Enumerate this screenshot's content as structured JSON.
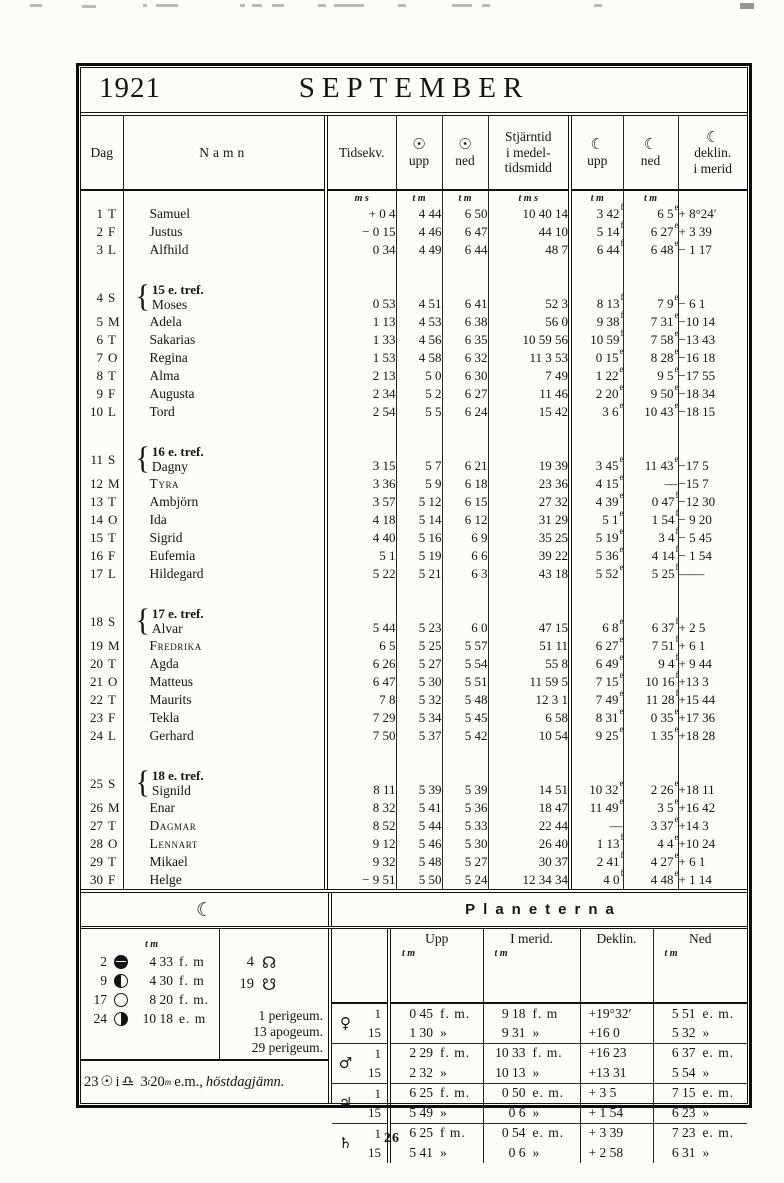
{
  "page": {
    "number": "26"
  },
  "title": {
    "year": "1921",
    "month": "SEPTEMBER"
  },
  "table": {
    "brace": "{",
    "headers": {
      "dag": "Dag",
      "namn": "Namn",
      "tidsekv": "Tidsekv.",
      "sun_symbol": "☉",
      "sun_upp": "upp",
      "sun_ned": "ned",
      "stjarntid": [
        "Stjärntid",
        "i medel-",
        "tidsmidd"
      ],
      "moon_symbol": "☾",
      "moon_upp": "upp",
      "moon_ned": "ned",
      "deklin_l1": "deklin.",
      "deklin_l2": "i merid"
    },
    "units": {
      "tidsekv": "m s",
      "sun_upp": "t m",
      "sun_ned": "t m",
      "stjarntid": "t m s",
      "moon_upp": "t m",
      "moon_ned": "t m"
    },
    "rows": [
      {
        "day": "1",
        "wd": "T",
        "name": "Samuel",
        "values": [
          "+ 0 4",
          "4 44",
          "6 50",
          "10 40 14",
          "3 42f",
          "6 5e",
          "+ 8°24′"
        ]
      },
      {
        "day": "2",
        "wd": "F",
        "name": "Justus",
        "values": [
          "− 0 15",
          "4 46",
          "6 47",
          "44 10",
          "5 14f",
          "6 27e",
          "+ 3 39"
        ]
      },
      {
        "day": "3",
        "wd": "L",
        "name": "Alfhild",
        "values": [
          "0 34",
          "4 49",
          "6 44",
          "48 7",
          "6 44f",
          "6 48e",
          "− 1 17"
        ]
      },
      {
        "day": "4",
        "wd": "S",
        "gap_before": true,
        "sunday": "15 e. tref.",
        "name": "Moses",
        "values": [
          "0 53",
          "4 51",
          "6 41",
          "52 3",
          "8 13f",
          "7 9e",
          "− 6 1"
        ]
      },
      {
        "day": "5",
        "wd": "M",
        "name": "Adela",
        "values": [
          "1 13",
          "4 53",
          "6 38",
          "56 0",
          "9 38f",
          "7 31e",
          "−10 14"
        ]
      },
      {
        "day": "6",
        "wd": "T",
        "name": "Sakarias",
        "values": [
          "1 33",
          "4 56",
          "6 35",
          "10 59 56",
          "10 59f",
          "7 58e",
          "−13 43"
        ]
      },
      {
        "day": "7",
        "wd": "O",
        "name": "Regina",
        "values": [
          "1 53",
          "4 58",
          "6 32",
          "11 3 53",
          "0 15e",
          "8 28e",
          "−16 18"
        ]
      },
      {
        "day": "8",
        "wd": "T",
        "name": "Alma",
        "values": [
          "2 13",
          "5 0",
          "6 30",
          "7 49",
          "1 22e",
          "9 5e",
          "−17 55"
        ]
      },
      {
        "day": "9",
        "wd": "F",
        "name": "Augusta",
        "values": [
          "2 34",
          "5 2",
          "6 27",
          "11 46",
          "2 20e",
          "9 50e",
          "−18 34"
        ]
      },
      {
        "day": "10",
        "wd": "L",
        "name": "Tord",
        "values": [
          "2 54",
          "5 5",
          "6 24",
          "15 42",
          "3 6e",
          "10 43e",
          "−18 15"
        ]
      },
      {
        "day": "11",
        "wd": "S",
        "gap_before": true,
        "sunday": "16 e. tref.",
        "name": "Dagny",
        "values": [
          "3 15",
          "5 7",
          "6 21",
          "19 39",
          "3 45e",
          "11 43e",
          "−17 5"
        ]
      },
      {
        "day": "12",
        "wd": "M",
        "name": "Tyra",
        "smallcaps": true,
        "values": [
          "3 36",
          "5 9",
          "6 18",
          "23 36",
          "4 15e",
          "—",
          "−15 7"
        ]
      },
      {
        "day": "13",
        "wd": "T",
        "name": "Ambjörn",
        "values": [
          "3 57",
          "5 12",
          "6 15",
          "27 32",
          "4 39e",
          "0 47f",
          "−12 30"
        ]
      },
      {
        "day": "14",
        "wd": "O",
        "name": "Ida",
        "values": [
          "4 18",
          "5 14",
          "6 12",
          "31 29",
          "5 1e",
          "1 54f",
          "− 9 20"
        ]
      },
      {
        "day": "15",
        "wd": "T",
        "name": "Sigrid",
        "values": [
          "4 40",
          "5 16",
          "6 9",
          "35 25",
          "5 19e",
          "3 4f",
          "− 5 45"
        ]
      },
      {
        "day": "16",
        "wd": "F",
        "name": "Eufemia",
        "values": [
          "5 1",
          "5 19",
          "6 6",
          "39 22",
          "5 36e",
          "4 14f",
          "− 1 54"
        ]
      },
      {
        "day": "17",
        "wd": "L",
        "name": "Hildegard",
        "values": [
          "5 22",
          "5 21",
          "6 3",
          "43 18",
          "5 52e",
          "5 25f",
          "——"
        ]
      },
      {
        "day": "18",
        "wd": "S",
        "gap_before": true,
        "sunday": "17 e. tref.",
        "name": "Alvar",
        "values": [
          "5 44",
          "5 23",
          "6 0",
          "47 15",
          "6 8e",
          "6 37f",
          "+ 2 5"
        ]
      },
      {
        "day": "19",
        "wd": "M",
        "name": "Fredrika",
        "smallcaps": true,
        "values": [
          "6 5",
          "5 25",
          "5 57",
          "51 11",
          "6 27e",
          "7 51f",
          "+ 6 1"
        ]
      },
      {
        "day": "20",
        "wd": "T",
        "name": "Agda",
        "values": [
          "6 26",
          "5 27",
          "5 54",
          "55 8",
          "6 49e",
          "9 4f",
          "+ 9 44"
        ]
      },
      {
        "day": "21",
        "wd": "O",
        "name": "Matteus",
        "values": [
          "6 47",
          "5 30",
          "5 51",
          "11 59 5",
          "7 15e",
          "10 16f",
          "+13 3"
        ]
      },
      {
        "day": "22",
        "wd": "T",
        "name": "Maurits",
        "values": [
          "7 8",
          "5 32",
          "5 48",
          "12 3 1",
          "7 49e",
          "11 28f",
          "+15 44"
        ]
      },
      {
        "day": "23",
        "wd": "F",
        "name": "Tekla",
        "values": [
          "7 29",
          "5 34",
          "5 45",
          "6 58",
          "8 31e",
          "0 35e",
          "+17 36"
        ]
      },
      {
        "day": "24",
        "wd": "L",
        "name": "Gerhard",
        "values": [
          "7 50",
          "5 37",
          "5 42",
          "10 54",
          "9 25e",
          "1 35e",
          "+18 28"
        ]
      },
      {
        "day": "25",
        "wd": "S",
        "gap_before": true,
        "sunday": "18 e. tref.",
        "name": "Signild",
        "values": [
          "8 11",
          "5 39",
          "5 39",
          "14 51",
          "10 32e",
          "2 26e",
          "+18 11"
        ]
      },
      {
        "day": "26",
        "wd": "M",
        "name": "Enar",
        "values": [
          "8 32",
          "5 41",
          "5 36",
          "18 47",
          "11 49e",
          "3 5e",
          "+16 42"
        ]
      },
      {
        "day": "27",
        "wd": "T",
        "name": "Dagmar",
        "smallcaps": true,
        "values": [
          "8 52",
          "5 44",
          "5 33",
          "22 44",
          "—",
          "3 37e",
          "+14 3"
        ]
      },
      {
        "day": "28",
        "wd": "O",
        "name": "Lennart",
        "smallcaps": true,
        "values": [
          "9 12",
          "5 46",
          "5 30",
          "26 40",
          "1 13f",
          "4 4e",
          "+10 24"
        ]
      },
      {
        "day": "29",
        "wd": "T",
        "name": "Mikael",
        "values": [
          "9 32",
          "5 48",
          "5 27",
          "30 37",
          "2 41f",
          "4 27e",
          "+ 6 1"
        ]
      },
      {
        "day": "30",
        "wd": "F",
        "name": "Helge",
        "values": [
          "− 9 51",
          "5 50",
          "5 24",
          "12 34 34",
          "4 0f",
          "4 48e",
          "+ 1 14"
        ]
      }
    ]
  },
  "moon_panel": {
    "symbol": "☾",
    "units": "t m",
    "phases": [
      {
        "day": "2",
        "phase": "new-moon",
        "time": "4 33",
        "ampm": "f. m"
      },
      {
        "day": "9",
        "phase": "first-quarter",
        "time": "4 30",
        "ampm": "f. m"
      },
      {
        "day": "17",
        "phase": "full-moon",
        "time": "8 20",
        "ampm": "f. m."
      },
      {
        "day": "24",
        "phase": "last-quarter",
        "time": "10 18",
        "ampm": "e. m"
      }
    ],
    "nodes": [
      {
        "day": "4",
        "symbol": "☊"
      },
      {
        "day": "19",
        "symbol": "☋"
      }
    ],
    "apsides": [
      "1 perigeum.",
      "13 apogeum.",
      "29 perigeum."
    ],
    "equinox": {
      "day": "23",
      "sun": "☉",
      "mid": "i",
      "libra": "♎",
      "hour": "3",
      "hour_unit": "t",
      "minute": "20",
      "minute_unit": "m",
      "suffix": "e.m.,",
      "note": "höstdagjämn."
    }
  },
  "planets_panel": {
    "title": "Planeterna",
    "col_headers": [
      "Upp",
      "I merid.",
      "Deklin.",
      "Ned"
    ],
    "time_unit": "t m",
    "planets": [
      {
        "symbol": "♀",
        "name": "venus",
        "rows": [
          {
            "date": "1",
            "upp": "0 45",
            "upp_s": "f. m.",
            "merid": "9 18",
            "merid_s": "f. m",
            "deklin": "+19°32′",
            "ned": "5 51",
            "ned_s": "e. m."
          },
          {
            "date": "15",
            "upp": "1 30",
            "upp_s": "»",
            "merid": "9 31",
            "merid_s": "»",
            "deklin": "+16 0",
            "ned": "5 32",
            "ned_s": "»"
          }
        ]
      },
      {
        "symbol": "♂",
        "name": "mars",
        "rows": [
          {
            "date": "1",
            "upp": "2 29",
            "upp_s": "f. m.",
            "merid": "10 33",
            "merid_s": "f. m.",
            "deklin": "+16 23",
            "ned": "6 37",
            "ned_s": "e. m."
          },
          {
            "date": "15",
            "upp": "2 32",
            "upp_s": "»",
            "merid": "10 13",
            "merid_s": "»",
            "deklin": "+13 31",
            "ned": "5 54",
            "ned_s": "»"
          }
        ]
      },
      {
        "symbol": "♃",
        "name": "jupiter",
        "rows": [
          {
            "date": "1",
            "upp": "6 25",
            "upp_s": "f. m.",
            "merid": "0 50",
            "merid_s": "e. m.",
            "deklin": "+ 3 5",
            "ned": "7 15",
            "ned_s": "e. m."
          },
          {
            "date": "15",
            "upp": "5 49",
            "upp_s": "»",
            "merid": "0 6",
            "merid_s": "»",
            "deklin": "+ 1 54",
            "ned": "6 23",
            "ned_s": "»"
          }
        ]
      },
      {
        "symbol": "♄",
        "name": "saturn",
        "rows": [
          {
            "date": "1",
            "upp": "6 25",
            "upp_s": "f m.",
            "merid": "0 54",
            "merid_s": "e. m.",
            "deklin": "+ 3 39",
            "ned": "7 23",
            "ned_s": "e. m."
          },
          {
            "date": "15",
            "upp": "5 41",
            "upp_s": "»",
            "merid": "0 6",
            "merid_s": "»",
            "deklin": "+ 2 58",
            "ned": "6 31",
            "ned_s": "»"
          }
        ]
      }
    ]
  }
}
